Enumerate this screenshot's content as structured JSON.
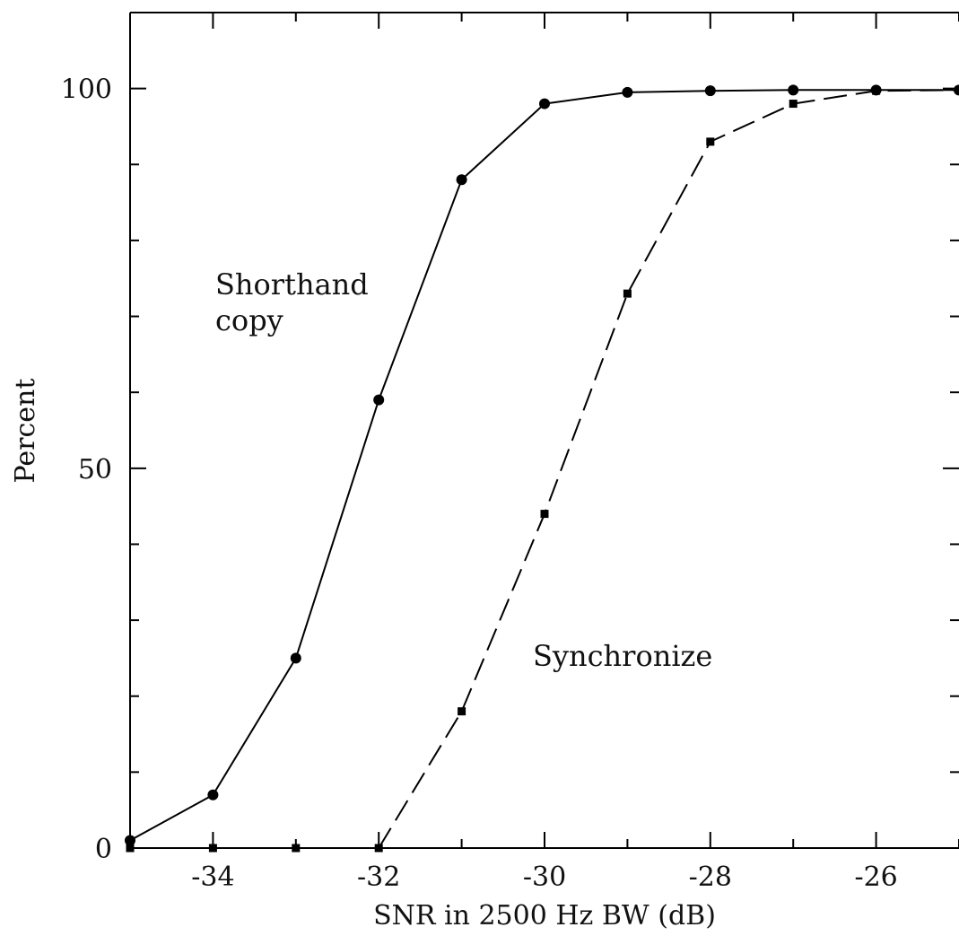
{
  "chart_data": {
    "type": "line",
    "title": "",
    "xlabel": "SNR in 2500 Hz BW (dB)",
    "ylabel": "Percent",
    "xlim": [
      -35,
      -25
    ],
    "ylim": [
      0,
      110
    ],
    "x_ticks": [
      -34,
      -32,
      -30,
      -28,
      -26
    ],
    "x_tick_labels": [
      "-34",
      "-32",
      "-30",
      "-28",
      "-26"
    ],
    "y_ticks": [
      0,
      50,
      100
    ],
    "y_tick_labels": [
      "0",
      "50",
      "100"
    ],
    "grid": false,
    "legend": "none",
    "series": [
      {
        "name": "Shorthand copy",
        "style": "solid",
        "marker": "circle",
        "x": [
          -35,
          -34,
          -33,
          -32,
          -31,
          -30,
          -29,
          -28,
          -27,
          -26,
          -25
        ],
        "y": [
          1,
          7,
          25,
          59,
          88,
          98,
          99.5,
          99.7,
          99.8,
          99.8,
          99.8
        ]
      },
      {
        "name": "Synchronize",
        "style": "dashed",
        "marker": "square",
        "x": [
          -35,
          -34,
          -33,
          -32,
          -31,
          -30,
          -29,
          -28,
          -27,
          -26,
          -25
        ],
        "y": [
          0,
          0,
          0,
          0,
          18,
          44,
          73,
          93,
          98,
          99.7,
          99.8
        ]
      }
    ],
    "annotations": [
      {
        "text_lines": [
          "Shorthand",
          "copy"
        ]
      },
      {
        "text_lines": [
          "Synchronize"
        ]
      }
    ]
  }
}
